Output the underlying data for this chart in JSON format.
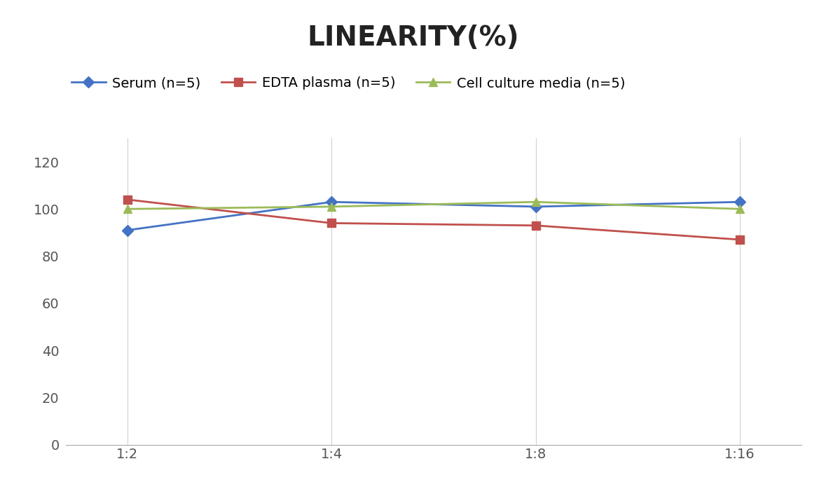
{
  "title": "LINEARITY(%)",
  "x_labels": [
    "1:2",
    "1:4",
    "1:8",
    "1:16"
  ],
  "x_positions": [
    0,
    1,
    2,
    3
  ],
  "series": [
    {
      "name": "Serum (n=5)",
      "values": [
        91,
        103,
        101,
        103
      ],
      "color": "#4472C4",
      "marker": "D",
      "linewidth": 2,
      "markersize": 8
    },
    {
      "name": "EDTA plasma (n=5)",
      "values": [
        104,
        94,
        93,
        87
      ],
      "color": "#C0504D",
      "marker": "s",
      "linewidth": 2,
      "markersize": 8
    },
    {
      "name": "Cell culture media (n=5)",
      "values": [
        100,
        101,
        103,
        100
      ],
      "color": "#9BBB59",
      "marker": "^",
      "linewidth": 2,
      "markersize": 8
    }
  ],
  "ylim": [
    0,
    130
  ],
  "yticks": [
    0,
    20,
    40,
    60,
    80,
    100,
    120
  ],
  "background_color": "#ffffff",
  "grid_color": "#d0d0d0",
  "title_fontsize": 28,
  "tick_fontsize": 14,
  "legend_fontsize": 14
}
